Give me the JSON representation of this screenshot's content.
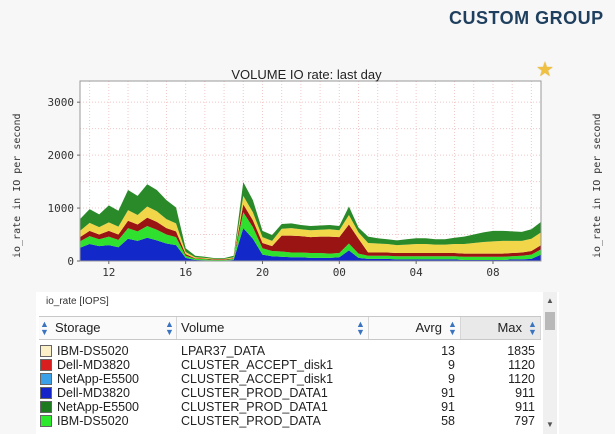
{
  "header": {
    "title": "CUSTOM GROUP"
  },
  "chart": {
    "title": "VOLUME IO rate: last day",
    "ylabel": "io_rate in IO per second",
    "y_ticks": [
      "3000",
      "2000",
      "1000",
      "0"
    ],
    "x_ticks": [
      "12",
      "16",
      "20",
      "00",
      "04",
      "08"
    ]
  },
  "chart_data": {
    "type": "area",
    "title": "VOLUME IO rate: last day",
    "ylabel": "io_rate in IO per second",
    "xlabel": "",
    "ylim": [
      0,
      3400
    ],
    "grid": true,
    "x": [
      10.5,
      11,
      11.5,
      12,
      12.5,
      13,
      13.5,
      14,
      14.5,
      15,
      15.5,
      16,
      16.5,
      17,
      17.5,
      18,
      18.5,
      19,
      19.5,
      20,
      20.5,
      21,
      21.5,
      22,
      22.5,
      23,
      23.5,
      24,
      24.5,
      25,
      25.5,
      26,
      26.5,
      27,
      27.5,
      28,
      28.5,
      29,
      29.5,
      30,
      30.5,
      31,
      31.5,
      32,
      32.5,
      33,
      33.5,
      34,
      34.5
    ],
    "series": [
      {
        "values": [
          250,
          320,
          280,
          300,
          260,
          420,
          380,
          440,
          390,
          330,
          300,
          60,
          20,
          15,
          10,
          10,
          20,
          620,
          420,
          120,
          90,
          80,
          70,
          70,
          60,
          60,
          60,
          70,
          200,
          60,
          40,
          40,
          40,
          30,
          30,
          30,
          30,
          30,
          30,
          30,
          20,
          20,
          20,
          20,
          20,
          30,
          30,
          40,
          120
        ]
      },
      {
        "values": [
          120,
          150,
          130,
          160,
          140,
          200,
          180,
          220,
          200,
          170,
          150,
          40,
          20,
          20,
          10,
          10,
          20,
          300,
          220,
          120,
          100,
          100,
          90,
          90,
          90,
          90,
          80,
          80,
          130,
          80,
          60,
          60,
          60,
          60,
          60,
          60,
          60,
          60,
          60,
          60,
          60,
          60,
          60,
          60,
          60,
          60,
          70,
          80,
          100
        ]
      },
      {
        "values": [
          80,
          100,
          90,
          110,
          100,
          140,
          130,
          160,
          150,
          120,
          110,
          30,
          10,
          10,
          10,
          10,
          10,
          150,
          130,
          100,
          90,
          300,
          320,
          310,
          300,
          310,
          320,
          300,
          360,
          280,
          60,
          60,
          60,
          60,
          60,
          60,
          60,
          60,
          60,
          60,
          60,
          60,
          60,
          60,
          60,
          60,
          60,
          70,
          80
        ]
      },
      {
        "values": [
          120,
          150,
          140,
          160,
          150,
          200,
          180,
          210,
          200,
          170,
          150,
          40,
          20,
          15,
          10,
          10,
          20,
          160,
          150,
          110,
          100,
          130,
          140,
          130,
          130,
          130,
          140,
          130,
          180,
          120,
          180,
          170,
          160,
          150,
          160,
          170,
          170,
          160,
          160,
          170,
          180,
          200,
          220,
          230,
          240,
          230,
          220,
          230,
          240
        ]
      },
      {
        "values": [
          220,
          260,
          240,
          320,
          300,
          380,
          360,
          420,
          400,
          360,
          300,
          70,
          30,
          20,
          15,
          15,
          30,
          260,
          230,
          120,
          110,
          90,
          90,
          80,
          80,
          80,
          80,
          80,
          160,
          90,
          120,
          100,
          90,
          90,
          100,
          110,
          110,
          100,
          100,
          120,
          140,
          160,
          180,
          200,
          190,
          180,
          170,
          180,
          200
        ]
      }
    ]
  },
  "table": {
    "metric_label": "io_rate [IOPS]",
    "columns": [
      "Storage",
      "Volume",
      "Avrg",
      "Max"
    ],
    "rows": [
      {
        "storage": "IBM-DS5020",
        "volume": "LPAR37_DATA",
        "avrg": "13",
        "max": "1835",
        "color": "#fbf0c8"
      },
      {
        "storage": "Dell-MD3820",
        "volume": "CLUSTER_ACCEPT_disk1",
        "avrg": "9",
        "max": "1120",
        "color": "#d81e1e"
      },
      {
        "storage": "NetApp-E5500",
        "volume": "CLUSTER_ACCEPT_disk1",
        "avrg": "9",
        "max": "1120",
        "color": "#3aa0e8"
      },
      {
        "storage": "Dell-MD3820",
        "volume": "CLUSTER_PROD_DATA1",
        "avrg": "91",
        "max": "911",
        "color": "#1424c8"
      },
      {
        "storage": "NetApp-E5500",
        "volume": "CLUSTER_PROD_DATA1",
        "avrg": "91",
        "max": "911",
        "color": "#1e7a1e"
      },
      {
        "storage": "IBM-DS5020",
        "volume": "CLUSTER_PROD_DATA",
        "avrg": "58",
        "max": "797",
        "color": "#2ee82e"
      }
    ]
  },
  "colors": {
    "header": "#1f3f5e",
    "sort_icon": "#3a73c0",
    "star": "#f0c040",
    "series": [
      "#1228c8",
      "#2fe02f",
      "#9a1414",
      "#f2d64a",
      "#2a8a2a"
    ]
  }
}
